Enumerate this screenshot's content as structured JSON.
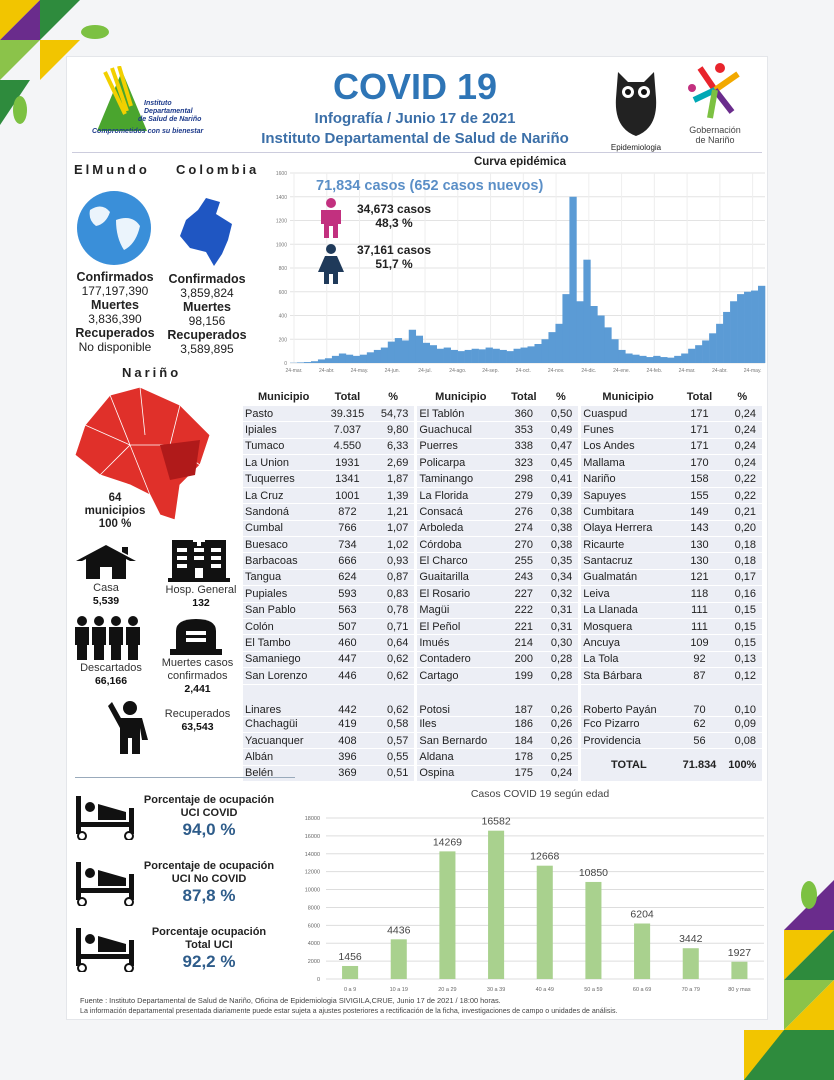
{
  "header": {
    "title": "COVID 19",
    "subtitle": "Infografía / Junio 17 de 2021",
    "institution": "Instituto Departamental de Salud de Nariño",
    "logo_left": {
      "line1": "Instituto",
      "line2": "Departamental",
      "line3": "de Salud de Nariño",
      "tagline": "Comprometidos con su bienestar"
    },
    "logo_epi": "Epidemiologia",
    "logo_gob": {
      "line1": "Gobernación",
      "line2": "de Nariño"
    }
  },
  "world": {
    "heading": "ElMundo",
    "confirmed_label": "Confirmados",
    "confirmed": "177,197,390",
    "deaths_label": "Muertes",
    "deaths": "3,836,390",
    "recovered_label": "Recuperados",
    "recovered": "No disponible"
  },
  "colombia": {
    "heading": "Colombia",
    "confirmed_label": "Confirmados",
    "confirmed": "3,859,824",
    "deaths_label": "Muertes",
    "deaths": "98,156",
    "recovered_label": "Recuperados",
    "recovered": "3,589,895"
  },
  "narino": {
    "heading": "Nariño",
    "municipios_count": "64",
    "municipios_label": "municipios",
    "municipios_pct": "100 %",
    "casa_label": "Casa",
    "casa": "5,539",
    "hosp_label": "Hosp. General",
    "hosp": "132",
    "descartados_label": "Descartados",
    "descartados": "66,166",
    "muertes_label": "Muertes casos confirmados",
    "muertes": "2,441",
    "recuperados_label": "Recuperados",
    "recuperados": "63,543"
  },
  "epi": {
    "title": "Curva epidémica",
    "total": "71,834  casos (652 casos nuevos)",
    "male": {
      "cases": "34,673  casos",
      "pct": "48,3 %",
      "color": "#c2307f"
    },
    "female": {
      "cases": "37,161  casos",
      "pct": "51,7 %",
      "color": "#1f3a5a"
    }
  },
  "table": {
    "headers": [
      "Municipio",
      "Total",
      "%"
    ],
    "rows": [
      [
        "Pasto",
        "39.315",
        "54,73",
        "El Tablón",
        "360",
        "0,50",
        "Cuaspud",
        "171",
        "0,24"
      ],
      [
        "Ipiales",
        "7.037",
        "9,80",
        "Guachucal",
        "353",
        "0,49",
        "Funes",
        "171",
        "0,24"
      ],
      [
        "Tumaco",
        "4.550",
        "6,33",
        "Puerres",
        "338",
        "0,47",
        "Los Andes",
        "171",
        "0,24"
      ],
      [
        "La Union",
        "1931",
        "2,69",
        "Policarpa",
        "323",
        "0,45",
        "Mallama",
        "170",
        "0,24"
      ],
      [
        "Tuquerres",
        "1341",
        "1,87",
        "Taminango",
        "298",
        "0,41",
        "Nariño",
        "158",
        "0,22"
      ],
      [
        "La Cruz",
        "1001",
        "1,39",
        "La Florida",
        "279",
        "0,39",
        "Sapuyes",
        "155",
        "0,22"
      ],
      [
        "Sandoná",
        "872",
        "1,21",
        "Consacá",
        "276",
        "0,38",
        "Cumbitara",
        "149",
        "0,21"
      ],
      [
        "Cumbal",
        "766",
        "1,07",
        "Arboleda",
        "274",
        "0,38",
        "Olaya Herrera",
        "143",
        "0,20"
      ],
      [
        "Buesaco",
        "734",
        "1,02",
        "Córdoba",
        "270",
        "0,38",
        "Ricaurte",
        "130",
        "0,18"
      ],
      [
        "Barbacoas",
        "666",
        "0,93",
        "El Charco",
        "255",
        "0,35",
        "Santacruz",
        "130",
        "0,18"
      ],
      [
        "Tangua",
        "624",
        "0,87",
        "Guaitarilla",
        "243",
        "0,34",
        "Gualmatán",
        "121",
        "0,17"
      ],
      [
        "Pupiales",
        "593",
        "0,83",
        "El Rosario",
        "227",
        "0,32",
        "Leiva",
        "118",
        "0,16"
      ],
      [
        "San Pablo",
        "563",
        "0,78",
        "Magüi",
        "222",
        "0,31",
        "La Llanada",
        "111",
        "0,15"
      ],
      [
        "Colón",
        "507",
        "0,71",
        "El Peñol",
        "221",
        "0,31",
        "Mosquera",
        "111",
        "0,15"
      ],
      [
        "El Tambo",
        "460",
        "0,64",
        "Imués",
        "214",
        "0,30",
        "Ancuya",
        "109",
        "0,15"
      ],
      [
        "Samaniego",
        "447",
        "0,62",
        "Contadero",
        "200",
        "0,28",
        "La Tola",
        "92",
        "0,13"
      ],
      [
        "San Lorenzo",
        "446",
        "0,62",
        "Cartago",
        "199",
        "0,28",
        "Sta Bárbara",
        "87",
        "0,12"
      ],
      [
        "Linares",
        "442",
        "0,62",
        "Potosi",
        "187",
        "0,26",
        "Roberto Payán",
        "70",
        "0,10"
      ],
      [
        "Chachagüi",
        "419",
        "0,58",
        "Iles",
        "186",
        "0,26",
        "Fco Pizarro",
        "62",
        "0,09"
      ],
      [
        "Yacuanquer",
        "408",
        "0,57",
        "San Bernardo",
        "184",
        "0,26",
        "Providencia",
        "56",
        "0,08"
      ],
      [
        "Albán",
        "396",
        "0,55",
        "Aldana",
        "178",
        "0,25"
      ],
      [
        "Belén",
        "369",
        "0,51",
        "Ospina",
        "175",
        "0,24"
      ]
    ],
    "total_label": "TOTAL",
    "total": "71.834",
    "total_pct": "100%"
  },
  "uci": [
    {
      "title1": "Porcentaje de ocupación",
      "title2": "UCI COVID",
      "value": "94,0 %"
    },
    {
      "title1": "Porcentaje de ocupación",
      "title2": "UCI No COVID",
      "value": "87,8  %"
    },
    {
      "title1": "Porcentaje ocupación",
      "title2": "Total UCI",
      "value": "92,2  %"
    }
  ],
  "footer": {
    "line1": "Fuente : Instituto Departamental de Salud de Nariño, Oficina de Epidemiologia SIVIGILA,CRUE,  Junio 17 de 2021 / 18:00  horas.",
    "line2": "La información departamental presentada diariamente puede estar sujeta a ajustes posteriores a  rectificación de la ficha, investigaciones de campo o unidades de análisis."
  },
  "chart_data": [
    {
      "type": "bar",
      "title": "Curva epidémica",
      "ylim": [
        0,
        1600
      ],
      "yticks": [
        0,
        200,
        400,
        600,
        800,
        1000,
        1200,
        1400,
        1600
      ],
      "xticks": [
        "24-mar.",
        "24-abr.",
        "24-may.",
        "24-jun.",
        "24-jul.",
        "24-ago.",
        "24-sep.",
        "24-oct.",
        "24-nov.",
        "24-dic.",
        "24-ene.",
        "24-feb.",
        "24-mar.",
        "24-abr.",
        "24-may."
      ],
      "color": "#5b9bd5",
      "grid": true,
      "values": [
        2,
        5,
        8,
        15,
        30,
        40,
        60,
        80,
        70,
        60,
        70,
        90,
        110,
        130,
        180,
        210,
        190,
        280,
        230,
        170,
        150,
        120,
        130,
        110,
        100,
        110,
        120,
        115,
        130,
        120,
        110,
        100,
        120,
        130,
        140,
        160,
        200,
        260,
        330,
        580,
        1400,
        520,
        870,
        480,
        400,
        300,
        200,
        110,
        80,
        70,
        60,
        50,
        60,
        50,
        45,
        60,
        80,
        120,
        150,
        190,
        250,
        330,
        430,
        520,
        580,
        600,
        610,
        650
      ]
    },
    {
      "type": "bar",
      "title": "Casos COVID 19  según edad",
      "categories": [
        "0 a 9",
        "10 a 19",
        "20 a 29",
        "30 a 39",
        "40 a 49",
        "50 a 59",
        "60 a 69",
        "70 a 79",
        "80 y mas"
      ],
      "values": [
        1456,
        4436,
        14269,
        16582,
        12668,
        10850,
        6204,
        3442,
        1927
      ],
      "ylim": [
        0,
        18000
      ],
      "yticks": [
        0,
        2000,
        4000,
        6000,
        8000,
        10000,
        12000,
        14000,
        16000,
        18000
      ],
      "color": "#a9d18e",
      "grid": true
    }
  ]
}
